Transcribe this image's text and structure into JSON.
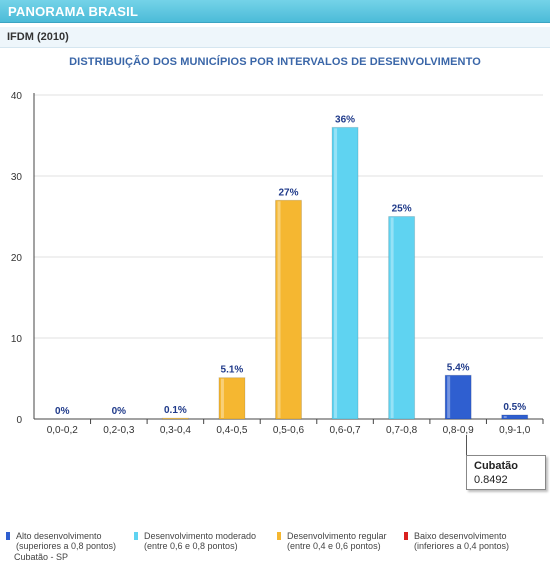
{
  "header": {
    "title": "PANORAMA BRASIL"
  },
  "subheader": {
    "label": "IFDM (2010)"
  },
  "chart_data": {
    "type": "bar",
    "title": "DISTRIBUIÇÃO DOS MUNICÍPIOS POR INTERVALOS DE DESENVOLVIMENTO",
    "xlabel": "",
    "ylabel": "",
    "categories": [
      "0,0-0,2",
      "0,2-0,3",
      "0,3-0,4",
      "0,4-0,5",
      "0,5-0,6",
      "0,6-0,7",
      "0,7-0,8",
      "0,8-0,9",
      "0,9-1,0"
    ],
    "values": [
      0,
      0,
      0.1,
      5.1,
      27,
      36,
      25,
      5.4,
      0.5
    ],
    "data_labels": [
      "0%",
      "0%",
      "0.1%",
      "5.1%",
      "27%",
      "36%",
      "25%",
      "5.4%",
      "0.5%"
    ],
    "bar_colors": [
      "#f5b731",
      "#f5b731",
      "#f5b731",
      "#f5b731",
      "#f5b731",
      "#5fd3f1",
      "#5fd3f1",
      "#2f5fd0",
      "#2f5fd0"
    ],
    "label_color": "#1f3a8a",
    "ylim": [
      0,
      40
    ],
    "yticks": [
      0,
      10,
      20,
      30,
      40
    ],
    "grid": true,
    "legend_position": "bottom"
  },
  "tooltip": {
    "name": "Cubatão",
    "value": "0.8492"
  },
  "legend": {
    "items": [
      {
        "name": "Alto desenvolvimento",
        "detail": "(superiores a 0,8 pontos)",
        "color": "#2f5fd0"
      },
      {
        "name": "Desenvolvimento moderado",
        "detail": "(entre 0,6 e 0,8 pontos)",
        "color": "#5fd3f1"
      },
      {
        "name": "Desenvolvimento regular",
        "detail": "(entre 0,4 e 0,6 pontos)",
        "color": "#f5b731"
      },
      {
        "name": "Baixo desenvolvimento",
        "detail": "(inferiores a 0,4 pontos)",
        "color": "#d9201f"
      }
    ],
    "footer": "Cubatão - SP"
  }
}
